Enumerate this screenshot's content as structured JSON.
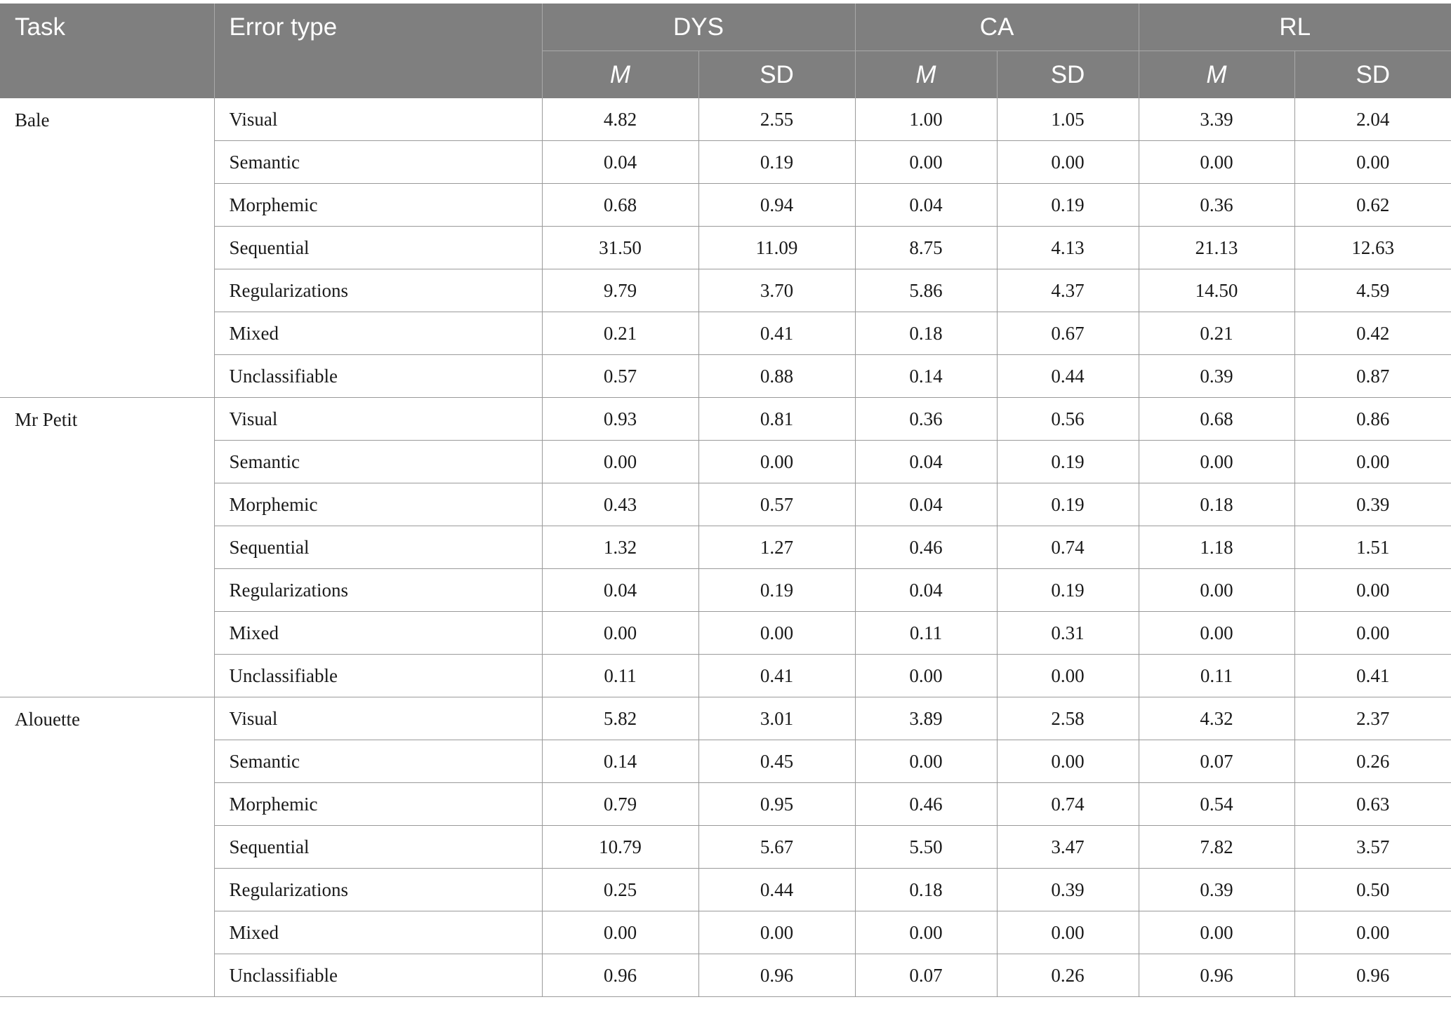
{
  "header": {
    "task": "Task",
    "error_type": "Error type",
    "groups": [
      "DYS",
      "CA",
      "RL"
    ],
    "stats": [
      "M",
      "SD"
    ]
  },
  "tasks": [
    {
      "name": "Bale",
      "rows": [
        {
          "type": "Visual",
          "values": [
            "4.82",
            "2.55",
            "1.00",
            "1.05",
            "3.39",
            "2.04"
          ]
        },
        {
          "type": "Semantic",
          "values": [
            "0.04",
            "0.19",
            "0.00",
            "0.00",
            "0.00",
            "0.00"
          ]
        },
        {
          "type": "Morphemic",
          "values": [
            "0.68",
            "0.94",
            "0.04",
            "0.19",
            "0.36",
            "0.62"
          ]
        },
        {
          "type": "Sequential",
          "values": [
            "31.50",
            "11.09",
            "8.75",
            "4.13",
            "21.13",
            "12.63"
          ]
        },
        {
          "type": "Regularizations",
          "values": [
            "9.79",
            "3.70",
            "5.86",
            "4.37",
            "14.50",
            "4.59"
          ]
        },
        {
          "type": "Mixed",
          "values": [
            "0.21",
            "0.41",
            "0.18",
            "0.67",
            "0.21",
            "0.42"
          ]
        },
        {
          "type": "Unclassifiable",
          "values": [
            "0.57",
            "0.88",
            "0.14",
            "0.44",
            "0.39",
            "0.87"
          ]
        }
      ]
    },
    {
      "name": "Mr Petit",
      "rows": [
        {
          "type": "Visual",
          "values": [
            "0.93",
            "0.81",
            "0.36",
            "0.56",
            "0.68",
            "0.86"
          ]
        },
        {
          "type": "Semantic",
          "values": [
            "0.00",
            "0.00",
            "0.04",
            "0.19",
            "0.00",
            "0.00"
          ]
        },
        {
          "type": "Morphemic",
          "values": [
            "0.43",
            "0.57",
            "0.04",
            "0.19",
            "0.18",
            "0.39"
          ]
        },
        {
          "type": "Sequential",
          "values": [
            "1.32",
            "1.27",
            "0.46",
            "0.74",
            "1.18",
            "1.51"
          ]
        },
        {
          "type": "Regularizations",
          "values": [
            "0.04",
            "0.19",
            "0.04",
            "0.19",
            "0.00",
            "0.00"
          ]
        },
        {
          "type": "Mixed",
          "values": [
            "0.00",
            "0.00",
            "0.11",
            "0.31",
            "0.00",
            "0.00"
          ]
        },
        {
          "type": "Unclassifiable",
          "values": [
            "0.11",
            "0.41",
            "0.00",
            "0.00",
            "0.11",
            "0.41"
          ]
        }
      ]
    },
    {
      "name": "Alouette",
      "rows": [
        {
          "type": "Visual",
          "values": [
            "5.82",
            "3.01",
            "3.89",
            "2.58",
            "4.32",
            "2.37"
          ]
        },
        {
          "type": "Semantic",
          "values": [
            "0.14",
            "0.45",
            "0.00",
            "0.00",
            "0.07",
            "0.26"
          ]
        },
        {
          "type": "Morphemic",
          "values": [
            "0.79",
            "0.95",
            "0.46",
            "0.74",
            "0.54",
            "0.63"
          ]
        },
        {
          "type": "Sequential",
          "values": [
            "10.79",
            "5.67",
            "5.50",
            "3.47",
            "7.82",
            "3.57"
          ]
        },
        {
          "type": "Regularizations",
          "values": [
            "0.25",
            "0.44",
            "0.18",
            "0.39",
            "0.39",
            "0.50"
          ]
        },
        {
          "type": "Mixed",
          "values": [
            "0.00",
            "0.00",
            "0.00",
            "0.00",
            "0.00",
            "0.00"
          ]
        },
        {
          "type": "Unclassifiable",
          "values": [
            "0.96",
            "0.96",
            "0.07",
            "0.26",
            "0.96",
            "0.96"
          ]
        }
      ]
    }
  ],
  "colors": {
    "header_bg": "#7f7f7f",
    "header_text": "#ffffff",
    "grid_line": "#9a9a9a"
  }
}
